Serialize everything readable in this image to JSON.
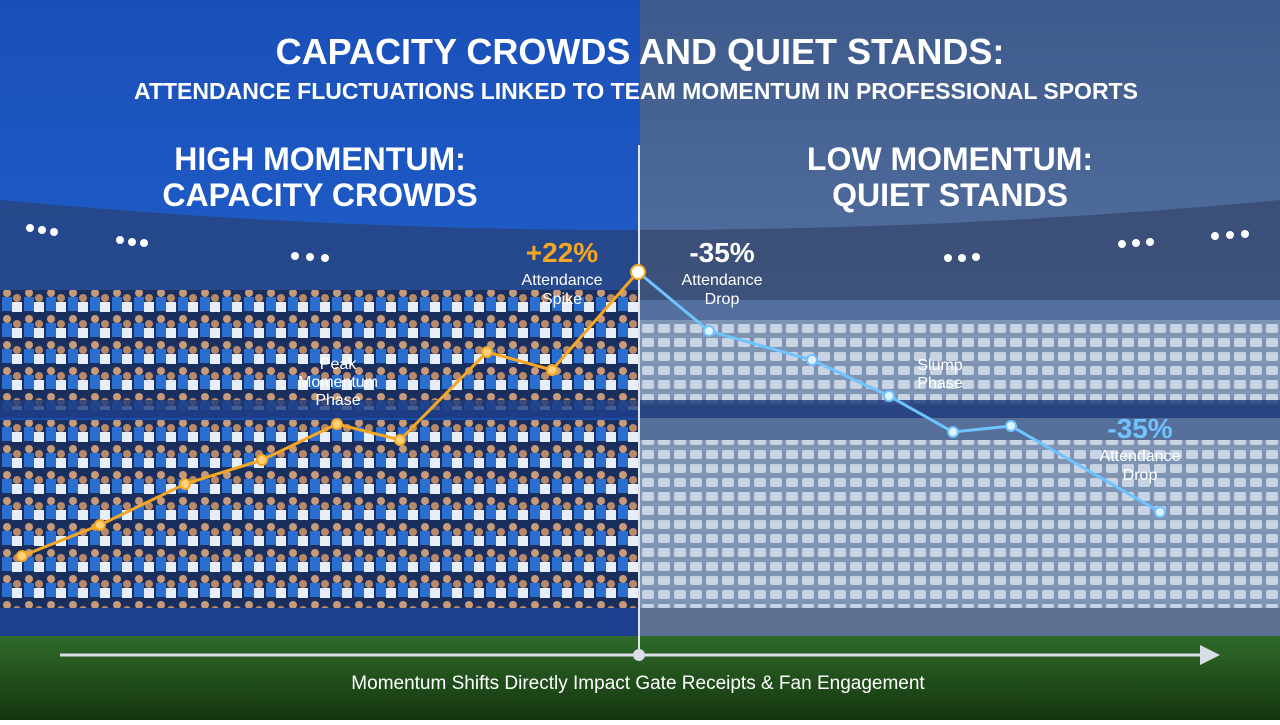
{
  "header": {
    "title": "CAPACITY CROWDS AND QUIET STANDS:",
    "subtitle": "ATTENDANCE FLUCTUATIONS LINKED TO TEAM MOMENTUM IN PROFESSIONAL SPORTS"
  },
  "panels": [
    {
      "heading": [
        "HIGH MOMENTUM:",
        "CAPACITY CROWDS"
      ],
      "annotations": [
        {
          "figure": "+22%",
          "label": [
            "Attendance",
            "Spike"
          ]
        },
        {
          "label": [
            "Peak",
            "Momentum",
            "Phase"
          ]
        }
      ]
    },
    {
      "heading": [
        "LOW MOMENTUM:",
        "QUIET STANDS"
      ],
      "annotations": [
        {
          "figure": "-35%",
          "label": [
            "Attendance",
            "Drop"
          ]
        },
        {
          "label": [
            "Slump",
            "Phase"
          ]
        },
        {
          "figure": "-35%",
          "label": [
            "Attendance",
            "Drop"
          ]
        }
      ]
    }
  ],
  "footer": {
    "caption": "Momentum Shifts Directly Impact Gate Receipts & Fan Engagement"
  }
}
